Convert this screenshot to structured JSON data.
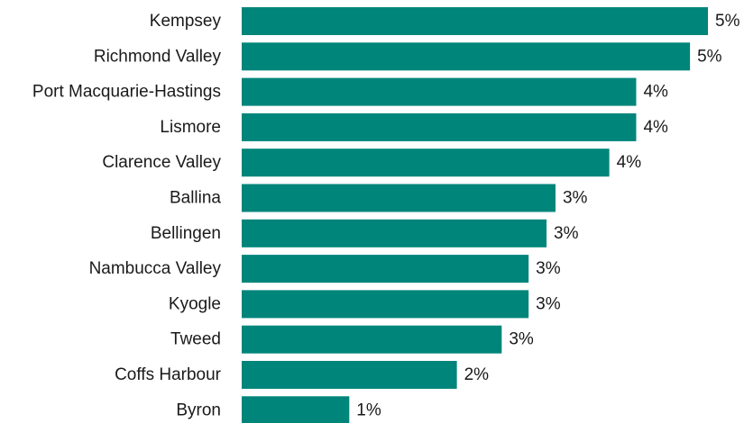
{
  "chart_data": {
    "type": "bar",
    "orientation": "horizontal",
    "title": "",
    "xlabel": "",
    "ylabel": "",
    "categories": [
      "Kempsey",
      "Richmond Valley",
      "Port Macquarie-Hastings",
      "Lismore",
      "Clarence Valley",
      "Ballina",
      "Bellingen",
      "Nambucca Valley",
      "Kyogle",
      "Tweed",
      "Coffs Harbour",
      "Byron"
    ],
    "values": [
      5.2,
      5.0,
      4.4,
      4.4,
      4.1,
      3.5,
      3.4,
      3.2,
      3.2,
      2.9,
      2.4,
      1.2
    ],
    "value_labels": [
      "5%",
      "5%",
      "4%",
      "4%",
      "4%",
      "3%",
      "3%",
      "3%",
      "3%",
      "3%",
      "2%",
      "1%"
    ],
    "xlim": [
      0,
      5.2
    ],
    "grid": false,
    "legend": "none",
    "colors": {
      "bar": "#00857a",
      "text": "#1a1a1a"
    }
  }
}
